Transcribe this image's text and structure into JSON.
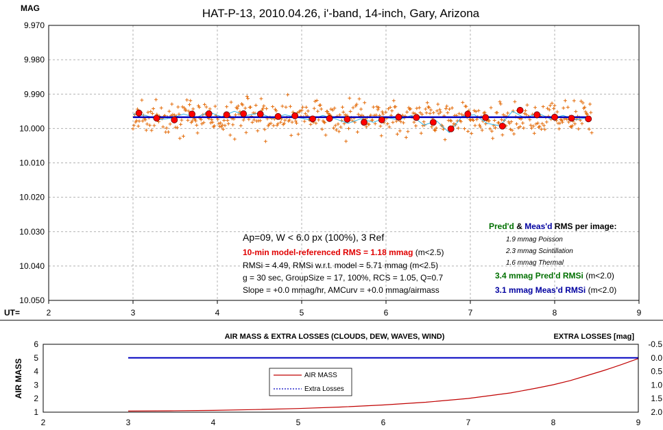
{
  "chart_data": [
    {
      "type": "scatter",
      "title": "HAT-P-13, 2010.04.26, i'-band, 14-inch, Gary, Arizona",
      "ylabel": "MAG",
      "xlabel": "UT=",
      "xlim": [
        2,
        9
      ],
      "ylim": [
        9.97,
        10.05
      ],
      "y_inverted": true,
      "grid": true,
      "x_ticks": [
        "2",
        "3",
        "4",
        "5",
        "6",
        "7",
        "8",
        "9"
      ],
      "y_ticks": [
        "9.970",
        "9.980",
        "9.990",
        "10.000",
        "10.010",
        "10.020",
        "10.030",
        "10.040",
        "10.050"
      ],
      "colors": {
        "points": "#e46c0a",
        "binned": "#ff0000",
        "model": "#0000c0",
        "smooth": "#33b5e5"
      },
      "model_line": {
        "x": [
          3.0,
          8.4
        ],
        "y": [
          9.9967,
          9.9967
        ]
      },
      "binned_points": {
        "x": [
          3.07,
          3.28,
          3.49,
          3.7,
          3.9,
          4.11,
          4.31,
          4.51,
          4.72,
          4.92,
          5.13,
          5.33,
          5.54,
          5.74,
          5.95,
          6.15,
          6.36,
          6.56,
          6.77,
          6.97,
          7.18,
          7.38,
          7.59,
          7.79,
          8.0,
          8.2,
          8.4
        ],
        "y": [
          9.9955,
          9.997,
          9.9975,
          9.9958,
          9.9957,
          9.996,
          9.9957,
          9.9958,
          9.9965,
          9.9963,
          9.9972,
          9.9971,
          9.9973,
          9.9982,
          9.9975,
          9.9967,
          9.9968,
          9.9982,
          10.0001,
          9.9958,
          9.9968,
          9.9993,
          9.9947,
          9.996,
          9.9967,
          9.997,
          9.9972
        ]
      },
      "smooth_curve": {
        "x": [
          3.0,
          3.15,
          3.3,
          3.45,
          3.6,
          3.75,
          3.9,
          4.05,
          4.2,
          4.35,
          4.5,
          4.65,
          4.8,
          4.95,
          5.1,
          5.25,
          5.4,
          5.55,
          5.7,
          5.85,
          6.0,
          6.15,
          6.3,
          6.45,
          6.6,
          6.75,
          6.9,
          7.05,
          7.2,
          7.35,
          7.5,
          7.65,
          7.8,
          7.95,
          8.1,
          8.25,
          8.4
        ],
        "y": [
          9.9958,
          9.9962,
          9.9975,
          9.997,
          9.9958,
          9.9968,
          9.9952,
          9.9966,
          9.995,
          9.9962,
          9.9955,
          9.997,
          9.996,
          9.9968,
          9.9975,
          9.9962,
          9.9972,
          9.9985,
          9.9972,
          9.9982,
          9.9968,
          9.9975,
          9.9962,
          9.999,
          9.9978,
          10.0012,
          9.9965,
          9.996,
          9.9985,
          9.9992,
          9.995,
          9.997,
          9.9955,
          9.9972,
          9.9962,
          9.9975,
          9.9968
        ]
      },
      "annotations": {
        "ap": "Ap=09, W < 6.0 px (100%), 3 Ref",
        "rms": "10-min model-referenced RMS = 1.18 mmag",
        "rms_cond": "(m<2.5)",
        "rmsi": "RMSi = 4.49, RMSi w.r.t. model = 5.71 mmag (m<2.5)",
        "group": "g = 30 sec, GroupSize = 17, 100%, RCS = 1.05, Q=0.7",
        "slope": "Slope = +0.0 mmag/hr, AMCurv = +0.0 mmag/airmass",
        "pred_head_1": "Pred'd",
        "pred_head_amp": "&",
        "pred_head_2": "Meas'd",
        "pred_head_3": "RMS per image:",
        "poisson": "1.9 mmag Poisson",
        "scint": "2.3 mmag Scintillation",
        "thermal": "1.6 mmag Thermal",
        "predd_value": "3.4 mmag Pred'd  RMSi",
        "predd_cond": "(m<2.0)",
        "measd_value": "3.1 mmag Meas'd RMSi",
        "measd_cond": "(m<2.0)"
      }
    },
    {
      "type": "line",
      "title": "AIR MASS & EXTRA LOSSES (CLOUDS, DEW, WAVES, WIND)",
      "ylabel": "AIR MASS",
      "y2label": "EXTRA LOSSES [mag]",
      "xlim": [
        2,
        9
      ],
      "ylim": [
        1,
        6
      ],
      "y2lim": [
        -0.5,
        2.0
      ],
      "x_ticks": [
        "2",
        "3",
        "4",
        "5",
        "6",
        "7",
        "8",
        "9"
      ],
      "y_ticks": [
        "1",
        "2",
        "3",
        "4",
        "5",
        "6"
      ],
      "y2_ticks": [
        "-0.5",
        "0.0",
        "0.5",
        "1.0",
        "1.5",
        "2.0"
      ],
      "legend_position": "center-left",
      "series": [
        {
          "name": "AIR MASS",
          "color": "#c00000",
          "x": [
            3.0,
            3.5,
            4.0,
            4.5,
            5.0,
            5.5,
            6.0,
            6.5,
            7.0,
            7.5,
            7.8,
            8.0,
            8.2,
            8.4,
            8.6,
            8.8,
            9.0
          ],
          "y": [
            1.08,
            1.1,
            1.13,
            1.19,
            1.27,
            1.38,
            1.53,
            1.73,
            2.01,
            2.42,
            2.77,
            3.02,
            3.33,
            3.7,
            4.08,
            4.5,
            4.95
          ]
        },
        {
          "name": "Extra Losses",
          "color": "#0000c0",
          "x": [
            3.0,
            9.0
          ],
          "y2": [
            0.0,
            0.0
          ]
        }
      ]
    }
  ]
}
